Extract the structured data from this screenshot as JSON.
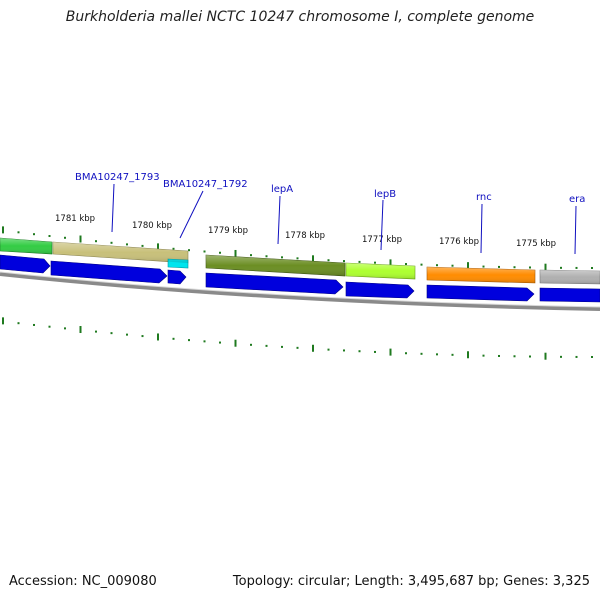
{
  "title": "Burkholderia mallei NCTC 10247 chromosome I, complete genome",
  "footer": {
    "accession": "Accession: NC_009080",
    "stats": "Topology: circular; Length: 3,495,687 bp; Genes: 3,325"
  },
  "colors": {
    "backbone": "#8a8a8a",
    "cds": "#0000dd",
    "ticks": "#1f7a1f",
    "label_line": "#1010c0"
  },
  "scale_labels": [
    "1781 kbp",
    "1780 kbp",
    "1779 kbp",
    "1778 kbp",
    "1777 kbp",
    "1776 kbp",
    "1775 kbp"
  ],
  "gene_labels": [
    "BMA10247_1793",
    "BMA10247_1792",
    "lepA",
    "lepB",
    "rnc",
    "era"
  ],
  "feature_colors": [
    "#33cc44",
    "#c8c07a",
    "#00e5ee",
    "#6b8e23",
    "#adff2f",
    "#ff8c00",
    "#b0b0b0"
  ]
}
